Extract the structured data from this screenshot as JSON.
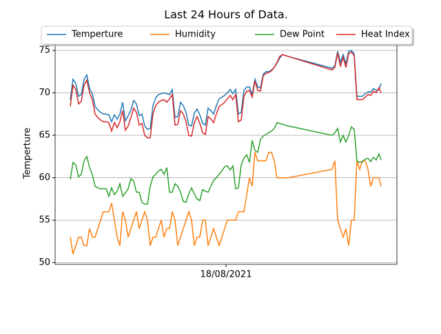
{
  "chart_data": {
    "type": "line",
    "title": "Last 24 Hours of Data.",
    "y_label": "Temperture",
    "x": [
      -11.3,
      -11.1,
      -10.9,
      -10.7,
      -10.5,
      -10.3,
      -10.1,
      -9.9,
      -9.7,
      -9.5,
      -9.3,
      -9.1,
      -8.9,
      -8.7,
      -8.5,
      -8.3,
      -8.1,
      -7.9,
      -7.7,
      -7.5,
      -7.3,
      -7.1,
      -6.9,
      -6.7,
      -6.5,
      -6.3,
      -6.1,
      -5.9,
      -5.7,
      -5.5,
      -5.3,
      -5.1,
      -4.9,
      -4.7,
      -4.5,
      -4.3,
      -4.1,
      -3.9,
      -3.7,
      -3.5,
      -3.3,
      -3.1,
      -2.9,
      -2.7,
      -2.5,
      -2.3,
      -2.1,
      -1.9,
      -1.7,
      -1.5,
      -1.3,
      -1.1,
      -0.9,
      -0.7,
      -0.5,
      -0.3,
      -0.1,
      0.1,
      0.3,
      0.5,
      0.7,
      0.9,
      1.1,
      1.3,
      1.5,
      1.7,
      1.9,
      2.1,
      2.3,
      2.5,
      2.7,
      2.9,
      3.1,
      3.3,
      3.5,
      3.7,
      3.9,
      4.1,
      4.3,
      4.5,
      7.7,
      7.9,
      8.1,
      8.3,
      8.5,
      8.7,
      8.9,
      9.1,
      9.3,
      9.5,
      9.7,
      9.9,
      10.1,
      10.3,
      10.5,
      10.7,
      10.9,
      11.1,
      11.25
    ],
    "xlim": [
      -12.4,
      12.4
    ],
    "xticks": [
      {
        "value": 0,
        "label": "18/08/2021"
      }
    ],
    "ylim": [
      49.8,
      75.9
    ],
    "yticks": [
      50,
      55,
      60,
      65,
      70,
      75
    ],
    "grid": true,
    "series": [
      {
        "name": "Temperture",
        "color": "#1f77b4",
        "values": [
          69.2,
          71.6,
          71.1,
          69.6,
          69.8,
          71.6,
          72.1,
          70.5,
          69.9,
          68.4,
          68.0,
          67.7,
          67.5,
          67.5,
          67.4,
          66.6,
          67.4,
          66.9,
          67.5,
          68.9,
          66.7,
          67.3,
          68.0,
          69.1,
          68.7,
          67.3,
          67.5,
          66.1,
          65.7,
          65.8,
          68.5,
          69.4,
          69.8,
          69.9,
          70.0,
          69.9,
          69.8,
          70.4,
          67.1,
          67.2,
          68.9,
          68.5,
          67.7,
          66.2,
          66.1,
          67.6,
          68.1,
          67.4,
          66.4,
          66.2,
          68.2,
          67.9,
          67.5,
          68.5,
          69.3,
          69.5,
          69.7,
          70.0,
          70.4,
          69.9,
          70.4,
          67.5,
          67.7,
          70.3,
          70.7,
          70.7,
          69.8,
          71.6,
          70.7,
          70.6,
          72.2,
          72.5,
          72.5,
          72.7,
          73.0,
          73.5,
          74.1,
          74.5,
          74.4,
          74.3,
          72.9,
          73.2,
          74.9,
          73.6,
          74.5,
          73.4,
          74.9,
          75.0,
          74.6,
          69.6,
          69.6,
          69.6,
          69.9,
          70.1,
          70.1,
          70.5,
          70.3,
          70.4,
          71.1
        ]
      },
      {
        "name": "Humidity",
        "color": "#ff7f0e",
        "values": [
          53,
          51,
          52,
          53,
          53,
          52,
          52,
          54,
          53,
          53,
          54,
          55,
          56,
          56,
          56,
          57,
          55,
          53,
          52,
          56,
          55,
          53,
          54,
          55,
          56,
          54,
          55,
          56,
          55,
          52,
          53,
          53,
          54,
          55,
          53,
          54,
          54,
          56,
          55,
          52,
          53,
          54,
          55,
          56,
          55,
          52,
          53,
          53,
          55,
          55,
          52,
          53,
          54,
          53,
          52,
          53,
          54,
          55,
          55,
          55,
          55,
          56,
          56,
          56,
          58,
          60,
          59,
          63,
          62,
          62,
          62,
          62,
          63,
          63,
          62,
          60,
          60,
          60,
          60,
          60,
          61,
          62,
          55,
          54,
          53,
          54,
          52,
          55,
          55,
          62,
          61,
          62,
          62,
          61,
          59,
          60,
          60,
          60,
          59
        ]
      },
      {
        "name": "Dew Point",
        "color": "#2ca02c",
        "values": [
          59.8,
          61.8,
          61.5,
          60.1,
          60.4,
          62.0,
          62.5,
          61.2,
          60.4,
          59.0,
          58.8,
          58.7,
          58.7,
          58.7,
          57.8,
          58.8,
          58.0,
          58.4,
          59.3,
          57.8,
          58.2,
          58.7,
          59.9,
          59.6,
          58.3,
          58.3,
          57.1,
          56.9,
          56.9,
          59.0,
          60.1,
          60.4,
          60.8,
          61.0,
          60.4,
          61.2,
          58.3,
          58.3,
          59.3,
          59.0,
          58.3,
          57.2,
          57.1,
          58.1,
          58.8,
          58.1,
          57.5,
          57.3,
          58.6,
          58.4,
          58.3,
          59.0,
          59.7,
          60.0,
          60.4,
          60.8,
          61.3,
          61.4,
          60.9,
          61.4,
          58.7,
          58.8,
          61.5,
          62.3,
          62.7,
          61.8,
          64.4,
          63.2,
          63.0,
          64.5,
          64.9,
          65.1,
          65.3,
          65.5,
          65.8,
          66.5,
          66.4,
          66.3,
          66.2,
          66.1,
          65.0,
          65.3,
          65.8,
          64.2,
          65.0,
          64.2,
          65.0,
          66.0,
          65.7,
          62.0,
          61.8,
          61.9,
          62.2,
          62.3,
          61.9,
          62.4,
          62.1,
          62.8,
          62.1
        ]
      },
      {
        "name": "Heat Index",
        "color": "#d62728",
        "values": [
          68.4,
          70.9,
          70.4,
          68.7,
          69.0,
          70.9,
          71.5,
          70.0,
          69.2,
          67.5,
          67.1,
          66.8,
          66.6,
          66.6,
          66.5,
          65.5,
          66.5,
          65.9,
          66.6,
          67.9,
          65.6,
          66.1,
          67.1,
          68.2,
          67.7,
          66.2,
          66.4,
          65.0,
          64.7,
          64.7,
          67.5,
          68.5,
          68.9,
          69.1,
          69.2,
          68.9,
          69.3,
          69.8,
          66.2,
          66.3,
          67.9,
          67.5,
          66.6,
          65.0,
          64.9,
          66.5,
          67.2,
          66.4,
          65.3,
          65.1,
          67.2,
          66.9,
          66.5,
          67.5,
          68.4,
          68.6,
          68.9,
          69.3,
          69.7,
          69.2,
          69.8,
          66.6,
          66.8,
          69.6,
          70.2,
          70.3,
          69.5,
          71.4,
          70.3,
          70.2,
          72.0,
          72.3,
          72.4,
          72.6,
          73.0,
          73.6,
          74.3,
          74.5,
          74.4,
          74.3,
          72.7,
          73.0,
          74.7,
          73.1,
          74.2,
          73.0,
          74.6,
          74.8,
          74.4,
          69.2,
          69.2,
          69.2,
          69.5,
          69.8,
          69.7,
          70.2,
          70.0,
          70.6,
          70.0
        ]
      }
    ]
  }
}
